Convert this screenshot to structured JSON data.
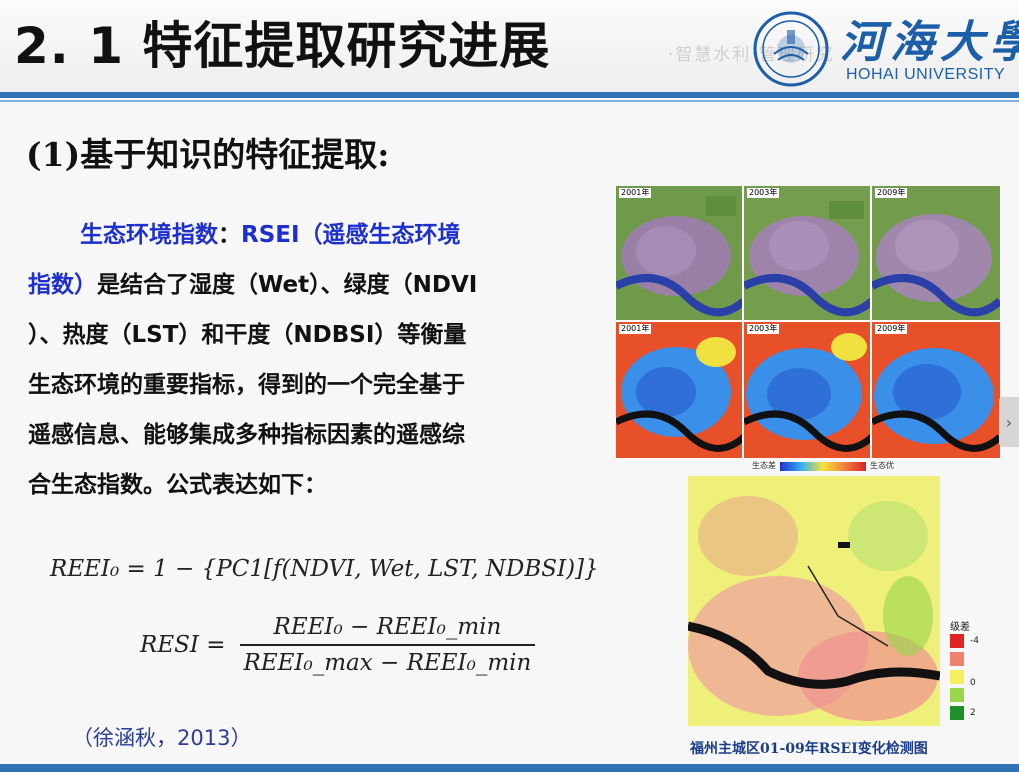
{
  "slide": {
    "title": "2. 1  特征提取研究进展",
    "ghost_text": "·智慧水利·管理研究",
    "logo": {
      "cn": "河海大學",
      "en": "HOHAI UNIVERSITY"
    },
    "subheading": "(1)基于知识的特征提取:",
    "paragraph": {
      "line1_blue": "生态环境指数",
      "line1_colon": "：",
      "line1_rsei": "RSEI（遥感生态环境",
      "line2_blue": "指数）",
      "line2_rest": "是结合了湿度（Wet）、绿度（NDVI",
      "line3": "）、热度（LST）和干度（NDBSI）等衡量",
      "line4": "生态环境的重要指标，得到的一个完全基于",
      "line5": "遥感信息、能够集成多种指标因素的遥感综",
      "line6": "合生态指数。公式表达如下："
    },
    "formula1": "REEI₀ = 1 − {PC1[f(NDVI, Wet, LST, NDBSI)]}",
    "formula2": {
      "lhs": "RESI =",
      "numerator": "REEI₀ − REEI₀_min",
      "denominator": "REEI₀_max − REEI₀_min"
    },
    "citation": "（徐涵秋，2013）",
    "figure": {
      "years": [
        "2001年",
        "2003年",
        "2009年"
      ],
      "legend_low": "生态差",
      "legend_high": "生态优",
      "change_legend_title": "级差",
      "change_legend_labels": [
        "-4",
        "0",
        "2"
      ],
      "change_legend_colors": [
        "#e02222",
        "#f08070",
        "#f5f060",
        "#9ad64a",
        "#1f8f2a"
      ],
      "caption": "福州主城区01-09年RSEI变化检测图"
    },
    "nav": {
      "next_icon": "›"
    }
  }
}
